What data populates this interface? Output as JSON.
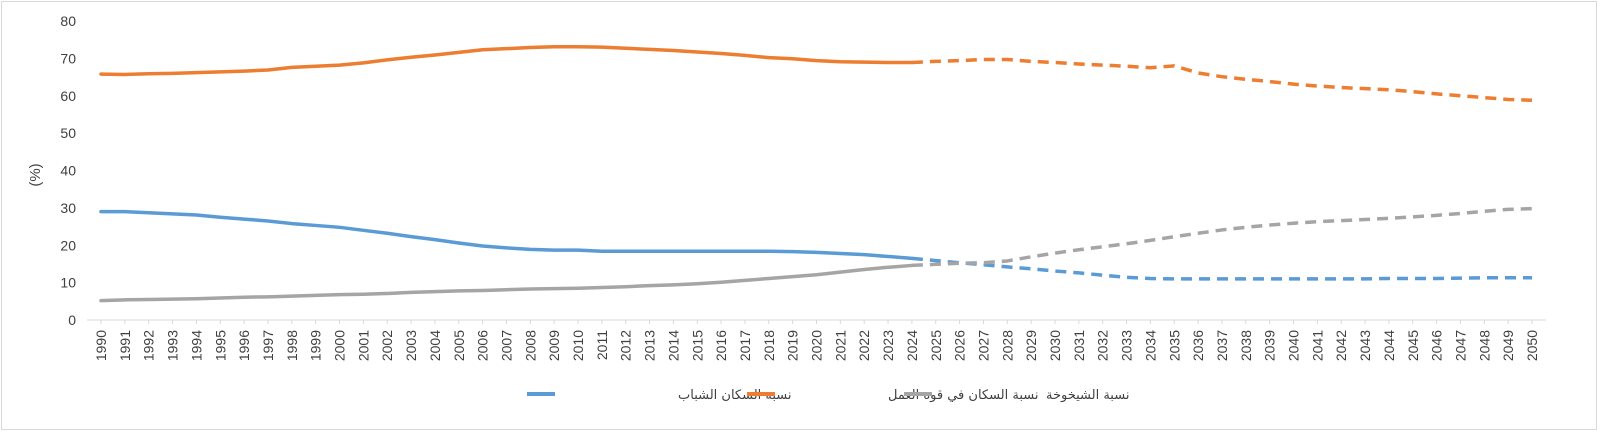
{
  "chart_data": {
    "type": "line",
    "title": "",
    "ylabel": "(%)",
    "xlabel": "",
    "ylim": [
      0,
      80
    ],
    "yticks": [
      0,
      10,
      20,
      30,
      40,
      50,
      60,
      70,
      80
    ],
    "grid": false,
    "legend_position": "bottom",
    "projection_start": 2024,
    "x": [
      1990,
      1991,
      1992,
      1993,
      1994,
      1995,
      1996,
      1997,
      1998,
      1999,
      2000,
      2001,
      2002,
      2003,
      2004,
      2005,
      2006,
      2007,
      2008,
      2009,
      2010,
      2011,
      2012,
      2013,
      2014,
      2015,
      2016,
      2017,
      2018,
      2019,
      2020,
      2021,
      2022,
      2023,
      2024,
      2025,
      2026,
      2027,
      2028,
      2029,
      2030,
      2031,
      2032,
      2033,
      2034,
      2035,
      2036,
      2037,
      2038,
      2039,
      2040,
      2041,
      2042,
      2043,
      2044,
      2045,
      2046,
      2047,
      2048,
      2049,
      2050
    ],
    "series": [
      {
        "name": "نسبة السكان الشباب",
        "color": "#5b9bd5",
        "values": [
          29.0,
          29.0,
          28.7,
          28.4,
          28.1,
          27.5,
          27.0,
          26.5,
          25.8,
          25.3,
          24.8,
          24.0,
          23.2,
          22.3,
          21.5,
          20.6,
          19.8,
          19.3,
          18.9,
          18.7,
          18.7,
          18.4,
          18.4,
          18.4,
          18.4,
          18.4,
          18.4,
          18.4,
          18.4,
          18.3,
          18.1,
          17.8,
          17.5,
          17.0,
          16.5,
          15.9,
          15.3,
          14.8,
          14.2,
          13.7,
          13.1,
          12.6,
          12.0,
          11.4,
          11.1,
          11.0,
          11.0,
          11.0,
          11.0,
          11.0,
          11.0,
          11.0,
          11.0,
          11.0,
          11.1,
          11.1,
          11.1,
          11.2,
          11.3,
          11.3,
          11.3
        ]
      },
      {
        "name": "نسبة السكان في قوة العمل",
        "color": "#ed7d31",
        "values": [
          65.8,
          65.7,
          65.9,
          66.0,
          66.2,
          66.4,
          66.6,
          66.9,
          67.6,
          67.9,
          68.2,
          68.8,
          69.6,
          70.3,
          70.9,
          71.6,
          72.3,
          72.6,
          72.9,
          73.1,
          73.1,
          73.0,
          72.7,
          72.4,
          72.1,
          71.7,
          71.3,
          70.8,
          70.2,
          69.9,
          69.4,
          69.1,
          69.0,
          68.9,
          68.9,
          69.2,
          69.4,
          69.7,
          69.7,
          69.2,
          68.9,
          68.5,
          68.2,
          67.9,
          67.5,
          68.0,
          66.1,
          65.1,
          64.4,
          63.8,
          63.1,
          62.6,
          62.2,
          61.9,
          61.6,
          61.1,
          60.5,
          60.0,
          59.5,
          59.0,
          58.8
        ]
      },
      {
        "name": "نسبة الشيخوخة",
        "color": "#a5a5a5",
        "values": [
          5.2,
          5.4,
          5.5,
          5.6,
          5.7,
          5.9,
          6.1,
          6.2,
          6.4,
          6.6,
          6.8,
          6.9,
          7.1,
          7.4,
          7.6,
          7.8,
          7.9,
          8.1,
          8.3,
          8.4,
          8.5,
          8.7,
          8.9,
          9.2,
          9.4,
          9.7,
          10.1,
          10.6,
          11.1,
          11.6,
          12.1,
          12.8,
          13.5,
          14.1,
          14.6,
          14.9,
          15.2,
          15.3,
          15.8,
          16.9,
          17.9,
          18.8,
          19.6,
          20.4,
          21.3,
          22.3,
          23.2,
          24.1,
          24.8,
          25.4,
          25.9,
          26.3,
          26.6,
          26.9,
          27.2,
          27.6,
          28.0,
          28.5,
          29.1,
          29.6,
          29.8
        ]
      }
    ]
  }
}
